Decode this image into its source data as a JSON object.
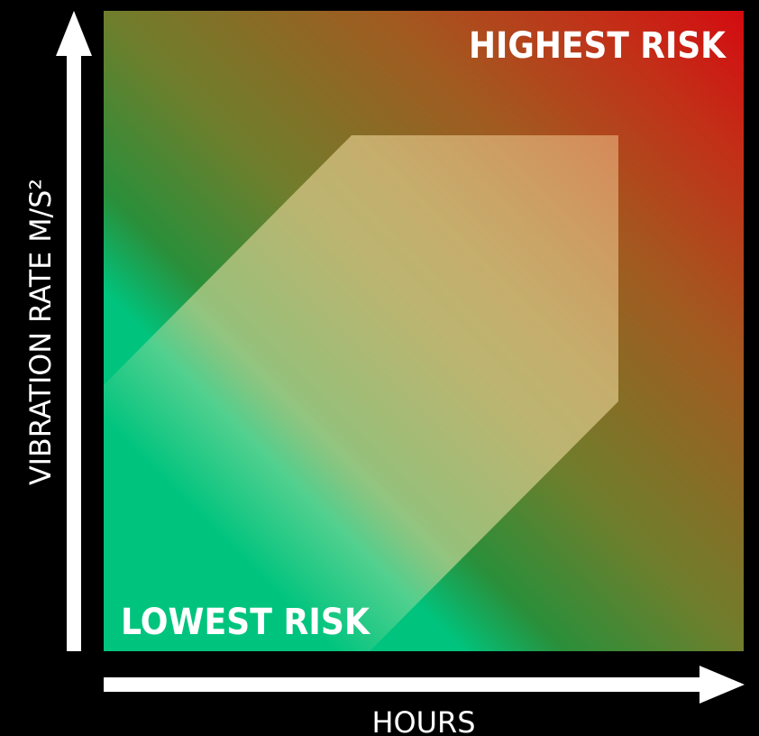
{
  "diagram": {
    "top_right_label": "HIGHEST RISK",
    "bottom_left_label": "LOWEST RISK",
    "x_axis_label": "HOURS",
    "y_axis_label": "VIBRATION RATE M/S²"
  },
  "colors": {
    "background": "#000000",
    "low_risk_green": "#00c47e",
    "mid_olive": "#8a7a28",
    "high_risk_red": "#d40a10",
    "highlight_band": "#f0dfa0",
    "axis": "#ffffff"
  }
}
